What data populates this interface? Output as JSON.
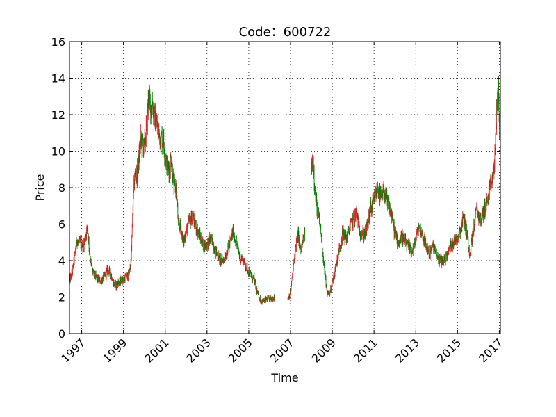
{
  "chart_data": {
    "type": "candlestick",
    "title": "Code：600722",
    "xlabel": "Time",
    "ylabel": "Price",
    "xlim": [
      "1996-06-01",
      "2017-01-20"
    ],
    "ylim": [
      0,
      16
    ],
    "yticks": [
      0,
      2,
      4,
      6,
      8,
      10,
      12,
      14,
      16
    ],
    "ytick_labels": [
      "0",
      "2",
      "4",
      "6",
      "8",
      "10",
      "12",
      "14",
      "16"
    ],
    "xticks": [
      "1997-01-01",
      "1999-01-01",
      "2001-01-01",
      "2003-01-01",
      "2005-01-01",
      "2007-01-01",
      "2009-01-01",
      "2011-01-01",
      "2013-01-01",
      "2015-01-01",
      "2017-01-01"
    ],
    "xtick_labels": [
      "1997",
      "1999",
      "2001",
      "2003",
      "2005",
      "2007",
      "2009",
      "2011",
      "2013",
      "2015",
      "2017"
    ],
    "grid": true,
    "grid_style": "dotted",
    "colors": {
      "up": "#d62728",
      "down": "#008000"
    },
    "series": [
      {
        "segments": [
          {
            "points": [
              [
                "1996-06-01",
                2.9
              ],
              [
                "1996-07-15",
                3.3
              ],
              [
                "1996-09-01",
                4.2
              ],
              [
                "1996-10-01",
                5.2
              ],
              [
                "1996-11-01",
                4.9
              ],
              [
                "1996-12-15",
                5.0
              ],
              [
                "1997-02-01",
                4.8
              ],
              [
                "1997-03-15",
                5.5
              ],
              [
                "1997-04-15",
                5.8
              ],
              [
                "1997-05-15",
                4.6
              ],
              [
                "1997-06-15",
                3.7
              ],
              [
                "1997-08-01",
                3.2
              ],
              [
                "1997-10-01",
                3.0
              ],
              [
                "1997-12-01",
                2.9
              ],
              [
                "1998-02-01",
                3.1
              ],
              [
                "1998-04-01",
                3.5
              ],
              [
                "1998-06-01",
                3.2
              ],
              [
                "1998-08-01",
                2.6
              ],
              [
                "1998-10-01",
                2.8
              ],
              [
                "1999-01-01",
                3.0
              ],
              [
                "1999-04-01",
                3.2
              ],
              [
                "1999-05-15",
                4.0
              ],
              [
                "1999-06-15",
                7.0
              ],
              [
                "1999-07-15",
                8.6
              ],
              [
                "1999-09-01",
                8.8
              ],
              [
                "1999-11-01",
                10.6
              ],
              [
                "2000-01-01",
                10.2
              ],
              [
                "2000-02-15",
                11.5
              ],
              [
                "2000-03-15",
                13.0
              ],
              [
                "2000-04-15",
                12.3
              ],
              [
                "2000-05-15",
                12.8
              ],
              [
                "2000-06-15",
                12.0
              ],
              [
                "2000-08-01",
                11.5
              ],
              [
                "2000-10-01",
                10.8
              ],
              [
                "2000-12-01",
                10.6
              ],
              [
                "2001-01-15",
                9.4
              ],
              [
                "2001-03-01",
                9.0
              ],
              [
                "2001-04-15",
                9.6
              ],
              [
                "2001-06-01",
                8.1
              ],
              [
                "2001-07-15",
                7.9
              ],
              [
                "2001-08-15",
                6.0
              ],
              [
                "2001-10-01",
                5.8
              ],
              [
                "2001-11-15",
                5.0
              ],
              [
                "2002-01-01",
                5.6
              ],
              [
                "2002-03-01",
                6.2
              ],
              [
                "2002-05-01",
                6.4
              ],
              [
                "2002-07-01",
                5.8
              ],
              [
                "2002-09-01",
                5.3
              ],
              [
                "2002-11-01",
                4.8
              ],
              [
                "2003-01-01",
                4.9
              ],
              [
                "2003-03-01",
                5.2
              ],
              [
                "2003-05-01",
                4.8
              ],
              [
                "2003-07-01",
                4.3
              ],
              [
                "2003-09-01",
                4.0
              ],
              [
                "2003-11-01",
                4.1
              ],
              [
                "2004-02-01",
                4.9
              ],
              [
                "2004-04-01",
                5.6
              ],
              [
                "2004-06-01",
                4.9
              ],
              [
                "2004-08-01",
                4.2
              ],
              [
                "2004-10-01",
                4.0
              ],
              [
                "2004-12-01",
                3.6
              ],
              [
                "2005-02-01",
                3.2
              ],
              [
                "2005-04-01",
                3.0
              ],
              [
                "2005-06-01",
                2.2
              ],
              [
                "2005-08-01",
                1.8
              ],
              [
                "2005-10-01",
                1.8
              ],
              [
                "2005-12-01",
                1.9
              ],
              [
                "2006-02-01",
                1.9
              ],
              [
                "2006-04-01",
                2.0
              ]
            ]
          },
          {
            "points": [
              [
                "2006-11-15",
                1.9
              ],
              [
                "2007-01-01",
                2.3
              ],
              [
                "2007-02-15",
                3.5
              ],
              [
                "2007-04-01",
                4.8
              ],
              [
                "2007-05-15",
                5.4
              ],
              [
                "2007-07-01",
                4.5
              ],
              [
                "2007-08-15",
                5.2
              ],
              [
                "2007-09-15",
                5.6
              ]
            ]
          },
          {
            "points": [
              [
                "2008-01-01",
                9.0
              ],
              [
                "2008-02-01",
                9.5
              ],
              [
                "2008-03-15",
                7.4
              ],
              [
                "2008-05-01",
                6.5
              ],
              [
                "2008-06-15",
                5.6
              ],
              [
                "2008-08-01",
                4.0
              ],
              [
                "2008-10-01",
                2.2
              ],
              [
                "2008-11-15",
                2.2
              ],
              [
                "2009-01-01",
                2.8
              ],
              [
                "2009-03-01",
                3.6
              ],
              [
                "2009-05-01",
                4.6
              ],
              [
                "2009-07-01",
                5.5
              ],
              [
                "2009-09-01",
                5.2
              ],
              [
                "2009-11-01",
                5.8
              ],
              [
                "2010-01-01",
                6.2
              ],
              [
                "2010-03-01",
                6.6
              ],
              [
                "2010-05-01",
                5.6
              ],
              [
                "2010-07-01",
                5.4
              ],
              [
                "2010-09-01",
                5.8
              ],
              [
                "2010-11-01",
                6.8
              ],
              [
                "2011-01-01",
                7.2
              ],
              [
                "2011-03-01",
                8.0
              ],
              [
                "2011-05-01",
                7.4
              ],
              [
                "2011-07-01",
                7.8
              ],
              [
                "2011-09-01",
                7.0
              ],
              [
                "2011-11-01",
                6.6
              ],
              [
                "2012-01-01",
                5.5
              ],
              [
                "2012-03-01",
                5.0
              ],
              [
                "2012-05-01",
                5.3
              ],
              [
                "2012-07-01",
                5.0
              ],
              [
                "2012-09-01",
                4.7
              ],
              [
                "2012-11-01",
                4.5
              ],
              [
                "2013-01-01",
                5.2
              ],
              [
                "2013-03-01",
                5.9
              ],
              [
                "2013-05-01",
                5.4
              ],
              [
                "2013-07-01",
                4.8
              ],
              [
                "2013-09-01",
                4.4
              ],
              [
                "2013-11-01",
                4.8
              ],
              [
                "2014-01-01",
                4.3
              ],
              [
                "2014-03-01",
                4.0
              ],
              [
                "2014-05-01",
                4.0
              ],
              [
                "2014-07-01",
                4.3
              ],
              [
                "2014-09-01",
                4.8
              ],
              [
                "2014-11-01",
                5.1
              ],
              [
                "2015-01-01",
                5.3
              ],
              [
                "2015-03-01",
                5.8
              ],
              [
                "2015-04-15",
                6.4
              ],
              [
                "2015-06-15",
                5.5
              ],
              [
                "2015-08-01",
                4.4
              ],
              [
                "2015-10-01",
                5.6
              ],
              [
                "2015-12-01",
                6.8
              ],
              [
                "2016-02-01",
                6.2
              ],
              [
                "2016-04-01",
                6.7
              ],
              [
                "2016-06-01",
                7.2
              ],
              [
                "2016-08-01",
                8.0
              ],
              [
                "2016-10-01",
                9.0
              ],
              [
                "2016-11-15",
                12.0
              ],
              [
                "2016-12-15",
                13.6
              ],
              [
                "2017-01-10",
                10.6
              ]
            ]
          }
        ]
      }
    ]
  }
}
